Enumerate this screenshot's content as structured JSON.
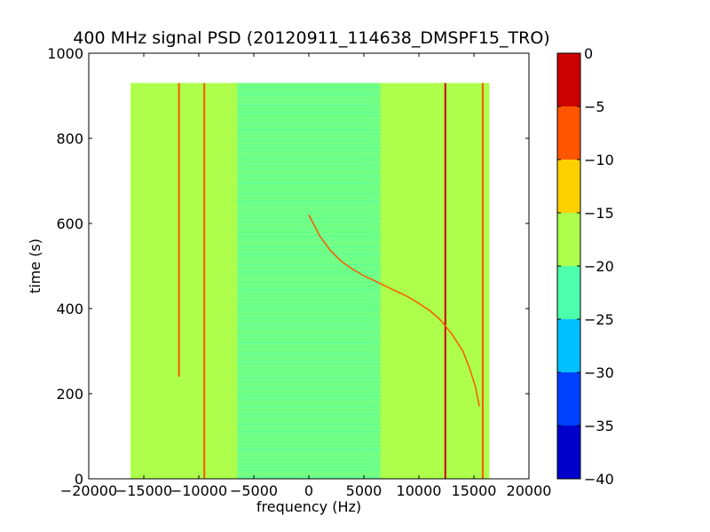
{
  "chart_data": {
    "type": "heatmap",
    "title": "400 MHz signal PSD (20120911_114638_DMSPF15_TRO)",
    "xlabel": "frequency (Hz)",
    "ylabel": "time (s)",
    "xlim": [
      -20000,
      20000
    ],
    "ylim": [
      0,
      1000
    ],
    "x_ticks": [
      -20000,
      -15000,
      -10000,
      -5000,
      0,
      5000,
      10000,
      15000,
      20000
    ],
    "x_tick_labels": [
      "−20000",
      "−15000",
      "−10000",
      "−5000",
      "0",
      "5000",
      "10000",
      "15000",
      "20000"
    ],
    "y_ticks": [
      0,
      200,
      400,
      600,
      800,
      1000
    ],
    "y_tick_labels": [
      "0",
      "200",
      "400",
      "600",
      "800",
      "1000"
    ],
    "data_extent": {
      "x": [
        -16200,
        16400
      ],
      "y": [
        0,
        930
      ]
    },
    "colorbar": {
      "range": [
        -40,
        0
      ],
      "ticks": [
        0,
        -5,
        -10,
        -15,
        -20,
        -25,
        -30,
        -35,
        -40
      ],
      "tick_labels": [
        "0",
        "−5",
        "−10",
        "−15",
        "−20",
        "−25",
        "−30",
        "−35",
        "−40"
      ],
      "levels": [
        {
          "from": -40,
          "to": -35,
          "color": "#0000cd"
        },
        {
          "from": -35,
          "to": -30,
          "color": "#0040ff"
        },
        {
          "from": -30,
          "to": -25,
          "color": "#00c0ff"
        },
        {
          "from": -25,
          "to": -20,
          "color": "#4bffad"
        },
        {
          "from": -20,
          "to": -15,
          "color": "#adff4b"
        },
        {
          "from": -15,
          "to": -10,
          "color": "#ffd000"
        },
        {
          "from": -10,
          "to": -5,
          "color": "#ff5500"
        },
        {
          "from": -5,
          "to": 0,
          "color": "#cd0000"
        }
      ]
    },
    "background_level": {
      "from": -20,
      "to": -15
    },
    "low_noise_region": {
      "x": [
        -6500,
        6500
      ],
      "y": [
        0,
        930
      ],
      "level": {
        "from": -25,
        "to": -20
      }
    },
    "carrier_lines": [
      {
        "x": -11800,
        "y": [
          240,
          930
        ],
        "level": {
          "from": -10,
          "to": -5
        }
      },
      {
        "x": -9500,
        "y": [
          0,
          930
        ],
        "level": {
          "from": -10,
          "to": -5
        }
      },
      {
        "x": 12400,
        "y": [
          0,
          930
        ],
        "level": {
          "from": -5,
          "to": 0
        }
      },
      {
        "x": 15800,
        "y": [
          0,
          930
        ],
        "level": {
          "from": -10,
          "to": -5
        }
      }
    ],
    "doppler_curve": {
      "level": {
        "from": -10,
        "to": -5
      },
      "points": [
        [
          0,
          620
        ],
        [
          1000,
          570
        ],
        [
          2000,
          535
        ],
        [
          3000,
          510
        ],
        [
          4000,
          492
        ],
        [
          5000,
          477
        ],
        [
          6000,
          465
        ],
        [
          7000,
          452
        ],
        [
          8000,
          440
        ],
        [
          9000,
          428
        ],
        [
          10000,
          412
        ],
        [
          11000,
          395
        ],
        [
          12000,
          372
        ],
        [
          13000,
          340
        ],
        [
          14000,
          300
        ],
        [
          14600,
          260
        ],
        [
          15100,
          220
        ],
        [
          15500,
          170
        ]
      ]
    }
  }
}
